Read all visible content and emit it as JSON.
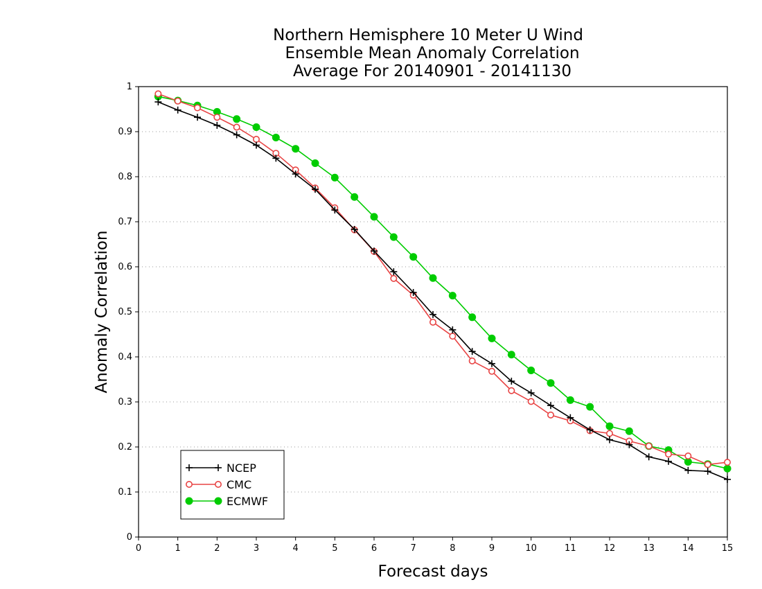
{
  "chart_data": {
    "type": "line",
    "title": [
      "Northern Hemisphere 10 Meter U Wind",
      "Ensemble Mean Anomaly Correlation",
      "Average For 20140901 - 20141130"
    ],
    "xlabel": "Forecast days",
    "ylabel": "Anomaly Correlation",
    "xlim": [
      0,
      15
    ],
    "ylim": [
      0,
      1
    ],
    "xticks": [
      "0",
      "1",
      "2",
      "3",
      "4",
      "5",
      "6",
      "7",
      "8",
      "9",
      "10",
      "11",
      "12",
      "13",
      "14",
      "15"
    ],
    "yticks": [
      "0",
      "0.1",
      "0.2",
      "0.3",
      "0.4",
      "0.5",
      "0.6",
      "0.7",
      "0.8",
      "0.9",
      "1"
    ],
    "grid": "horizontal dotted",
    "legend_position": "bottom-left",
    "x": [
      0.5,
      1,
      1.5,
      2,
      2.5,
      3,
      3.5,
      4,
      4.5,
      5,
      5.5,
      6,
      6.5,
      7,
      7.5,
      8,
      8.5,
      9,
      9.5,
      10,
      10.5,
      11,
      11.5,
      12,
      12.5,
      13,
      13.5,
      14,
      14.5,
      15
    ],
    "series": [
      {
        "name": "NCEP",
        "color": "#000000",
        "marker": "plus",
        "values": [
          0.966,
          0.948,
          0.932,
          0.914,
          0.893,
          0.87,
          0.841,
          0.806,
          0.772,
          0.726,
          0.683,
          0.635,
          0.589,
          0.543,
          0.494,
          0.46,
          0.412,
          0.385,
          0.346,
          0.32,
          0.292,
          0.265,
          0.238,
          0.216,
          0.205,
          0.178,
          0.168,
          0.148,
          0.146,
          0.128
        ]
      },
      {
        "name": "CMC",
        "color": "#e84444",
        "marker": "open-circle",
        "values": [
          0.984,
          0.968,
          0.953,
          0.932,
          0.91,
          0.883,
          0.852,
          0.815,
          0.775,
          0.731,
          0.682,
          0.634,
          0.574,
          0.537,
          0.477,
          0.446,
          0.391,
          0.368,
          0.325,
          0.301,
          0.271,
          0.258,
          0.236,
          0.23,
          0.213,
          0.202,
          0.184,
          0.18,
          0.161,
          0.166
        ]
      },
      {
        "name": "ECMWF",
        "color": "#00cc00",
        "marker": "filled-circle",
        "values": [
          0.978,
          0.969,
          0.958,
          0.944,
          0.928,
          0.91,
          0.887,
          0.862,
          0.83,
          0.798,
          0.755,
          0.711,
          0.666,
          0.622,
          0.575,
          0.536,
          0.488,
          0.441,
          0.405,
          0.37,
          0.342,
          0.304,
          0.289,
          0.246,
          0.235,
          0.202,
          0.193,
          0.167,
          0.162,
          0.152
        ]
      }
    ]
  }
}
